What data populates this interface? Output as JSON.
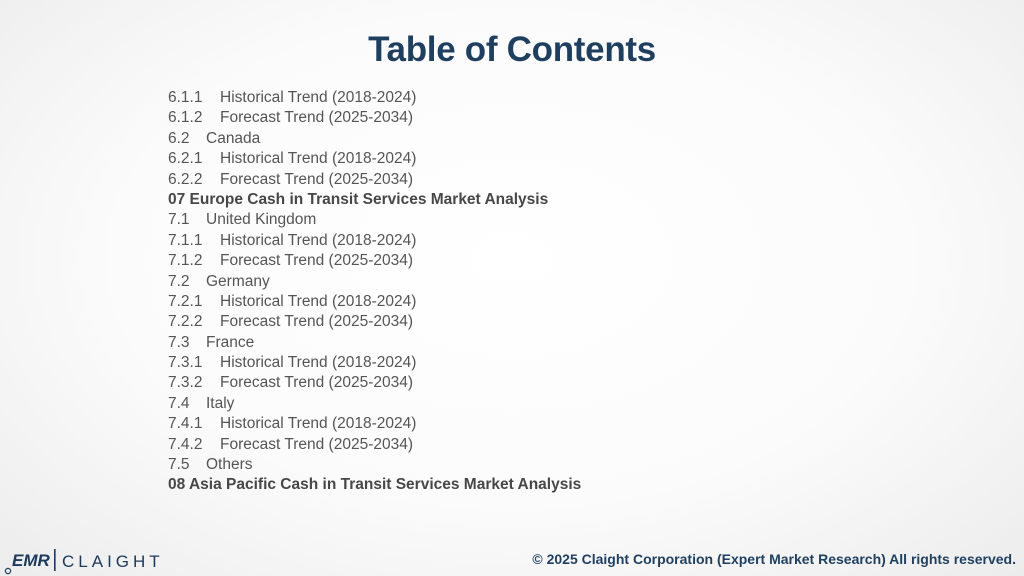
{
  "page": {
    "title": "Table of Contents"
  },
  "toc": [
    {
      "num": "6.1.1",
      "label": "Historical Trend (2018-2024)",
      "kind": "sub"
    },
    {
      "num": "6.1.2",
      "label": "Forecast Trend (2025-2034)",
      "kind": "sub"
    },
    {
      "num": "6.2",
      "label": "Canada",
      "kind": "sec"
    },
    {
      "num": "6.2.1",
      "label": "Historical Trend (2018-2024)",
      "kind": "sub"
    },
    {
      "num": "6.2.2",
      "label": "Forecast Trend (2025-2034)",
      "kind": "sub"
    },
    {
      "num": "",
      "label": "07 Europe Cash in Transit Services Market Analysis",
      "kind": "head"
    },
    {
      "num": "7.1",
      "label": "United Kingdom",
      "kind": "sec"
    },
    {
      "num": "7.1.1",
      "label": "Historical Trend (2018-2024)",
      "kind": "sub"
    },
    {
      "num": "7.1.2",
      "label": "Forecast Trend (2025-2034)",
      "kind": "sub"
    },
    {
      "num": "7.2",
      "label": "Germany",
      "kind": "sec"
    },
    {
      "num": "7.2.1",
      "label": "Historical Trend (2018-2024)",
      "kind": "sub"
    },
    {
      "num": "7.2.2",
      "label": "Forecast Trend (2025-2034)",
      "kind": "sub"
    },
    {
      "num": "7.3",
      "label": "France",
      "kind": "sec"
    },
    {
      "num": "7.3.1",
      "label": "Historical Trend (2018-2024)",
      "kind": "sub"
    },
    {
      "num": "7.3.2",
      "label": "Forecast Trend (2025-2034)",
      "kind": "sub"
    },
    {
      "num": "7.4",
      "label": "Italy",
      "kind": "sec"
    },
    {
      "num": "7.4.1",
      "label": "Historical Trend (2018-2024)",
      "kind": "sub"
    },
    {
      "num": "7.4.2",
      "label": "Forecast Trend (2025-2034)",
      "kind": "sub"
    },
    {
      "num": "7.5",
      "label": "Others",
      "kind": "sec"
    },
    {
      "num": "",
      "label": "08 Asia Pacific Cash in Transit Services Market Analysis",
      "kind": "head"
    }
  ],
  "footer": {
    "copyright": "© 2025 Claight Corporation (Expert Market Research) All rights reserved.",
    "logo_left": "EMR",
    "logo_right": "CLAIGHT"
  },
  "colors": {
    "title": "#1f3f5e",
    "text": "#555555",
    "logo_blue": "#1b3a5c"
  }
}
